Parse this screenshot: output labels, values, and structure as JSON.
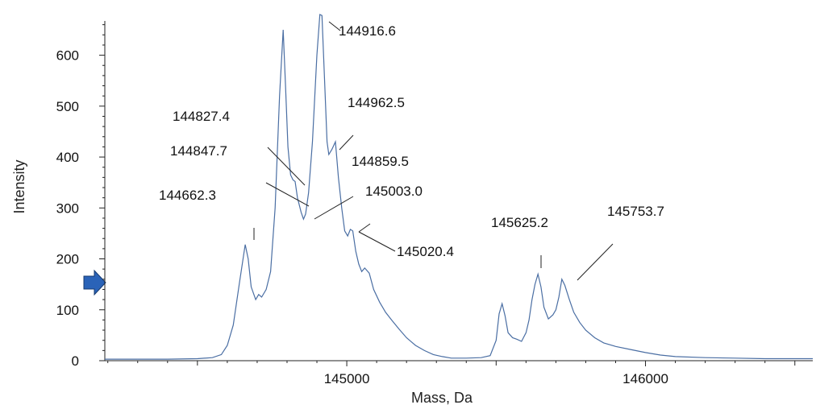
{
  "chart_data": {
    "type": "line",
    "title": "",
    "xlabel": "Mass, Da",
    "ylabel": "Intensity",
    "xlim": [
      144190,
      146560
    ],
    "ylim": [
      0,
      680
    ],
    "x_ticks": [
      145000,
      146000
    ],
    "x_tick_labels": [
      "145000",
      "146000"
    ],
    "y_ticks": [
      0,
      100,
      200,
      300,
      400,
      500,
      600
    ],
    "y_tick_labels": [
      "0",
      "100",
      "200",
      "300",
      "400",
      "500",
      "600"
    ],
    "grid": false,
    "legend": "none",
    "line_color": "#4a6ea3",
    "marker_color": "#2a63b8",
    "series": [
      {
        "x": [
          144190,
          144300,
          144400,
          144500,
          144550,
          144580,
          144600,
          144620,
          144640,
          144660,
          144670,
          144680,
          144695,
          144705,
          144715,
          144730,
          144745,
          144760,
          144775,
          144787,
          144795,
          144803,
          144812,
          144820,
          144827,
          144835,
          144847,
          144855,
          144862,
          144872,
          144885,
          144900,
          144910,
          144917,
          144925,
          144934,
          144940,
          144950,
          144962,
          144972,
          144983,
          144993,
          145003,
          145012,
          145020,
          145030,
          145040,
          145050,
          145060,
          145075,
          145090,
          145110,
          145130,
          145150,
          145175,
          145200,
          145230,
          145260,
          145290,
          145320,
          145350,
          145400,
          145450,
          145480,
          145500,
          145510,
          145520,
          145530,
          145540,
          145555,
          145570,
          145585,
          145600,
          145610,
          145620,
          145630,
          145640,
          145650,
          145660,
          145675,
          145690,
          145700,
          145710,
          145720,
          145730,
          145745,
          145760,
          145780,
          145800,
          145830,
          145860,
          145900,
          145950,
          146000,
          146050,
          146100,
          146200,
          146300,
          146400,
          146500,
          146560
        ],
        "y": [
          3,
          3,
          3,
          4,
          6,
          12,
          30,
          70,
          150,
          228,
          200,
          145,
          120,
          130,
          125,
          140,
          175,
          300,
          520,
          650,
          540,
          420,
          365,
          355,
          352,
          320,
          292,
          278,
          288,
          330,
          430,
          600,
          680,
          678,
          560,
          430,
          405,
          415,
          430,
          360,
          300,
          255,
          245,
          258,
          255,
          215,
          190,
          175,
          182,
          172,
          140,
          115,
          95,
          80,
          62,
          45,
          30,
          20,
          12,
          8,
          5,
          5,
          6,
          10,
          40,
          92,
          112,
          88,
          55,
          45,
          42,
          38,
          55,
          80,
          120,
          150,
          170,
          145,
          105,
          82,
          90,
          100,
          125,
          160,
          148,
          120,
          95,
          75,
          60,
          45,
          35,
          28,
          22,
          16,
          11,
          8,
          6,
          5,
          4,
          4,
          4
        ]
      }
    ],
    "annotations": [
      {
        "label": "144662.3",
        "x": 144662,
        "y": 228
      },
      {
        "label": "144827.4",
        "x": 144827,
        "y": 352
      },
      {
        "label": "144847.7",
        "x": 144847,
        "y": 292
      },
      {
        "label": "144916.6",
        "x": 144917,
        "y": 678
      },
      {
        "label": "144962.5",
        "x": 144962,
        "y": 430
      },
      {
        "label": "144859.5",
        "x": 144860,
        "y": 285
      },
      {
        "label": "145003.0",
        "x": 145003,
        "y": 245
      },
      {
        "label": "145020.4",
        "x": 145020,
        "y": 255
      },
      {
        "label": "145625.2",
        "x": 145625,
        "y": 170
      },
      {
        "label": "145753.7",
        "x": 145754,
        "y": 160
      }
    ]
  }
}
